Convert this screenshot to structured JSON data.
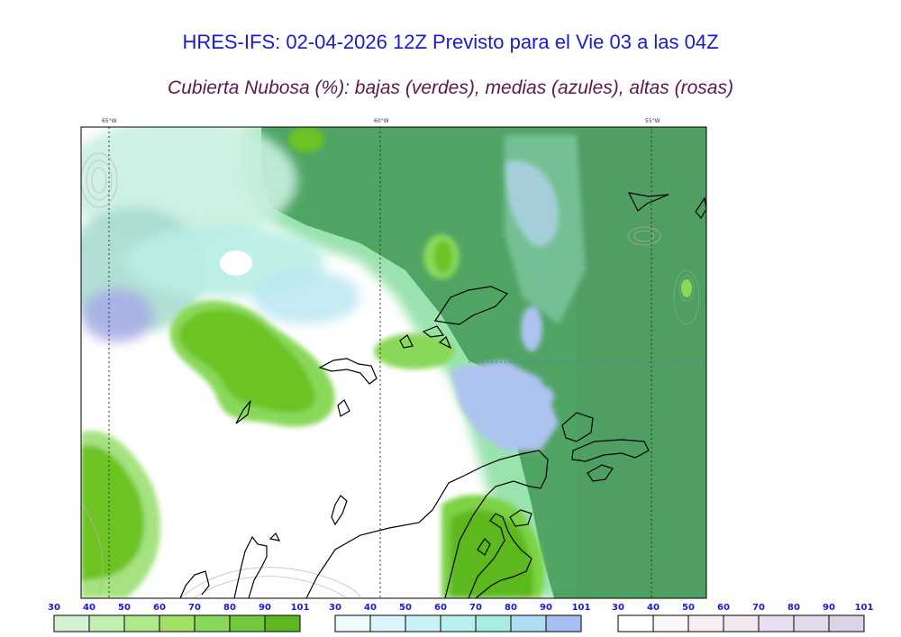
{
  "header": {
    "title": "HRES-IFS: 02-04-2026 12Z Previsto para el Vie 03 a las 04Z",
    "subtitle": "Cubierta Nubosa (%): bajas (verdes), medias (azules), altas (rosas)"
  },
  "map": {
    "longitude_labels": [
      "65°W",
      "60°W",
      "55°W"
    ]
  },
  "colorbars": [
    {
      "name": "bajas",
      "ticks": [
        "30",
        "40",
        "50",
        "60",
        "70",
        "80",
        "90",
        "101"
      ],
      "colors": [
        "#d4f2d0",
        "#c2efb2",
        "#b0e88c",
        "#a2e066",
        "#8ad85a",
        "#72c83e",
        "#5cb81e"
      ]
    },
    {
      "name": "medias",
      "ticks": [
        "30",
        "40",
        "50",
        "60",
        "70",
        "80",
        "90",
        "101"
      ],
      "colors": [
        "#eefbfd",
        "#dbf6fa",
        "#c8f2f6",
        "#b8f0f0",
        "#a8eee0",
        "#b0dcf4",
        "#a6bff0"
      ]
    },
    {
      "name": "altas",
      "ticks": [
        "30",
        "40",
        "50",
        "60",
        "70",
        "80",
        "90",
        "101"
      ],
      "colors": [
        "#ffffff",
        "#fbf6f8",
        "#f7eef2",
        "#f3e6ee",
        "#eadff0",
        "#e4dbea",
        "#dcd3e6"
      ]
    }
  ]
}
